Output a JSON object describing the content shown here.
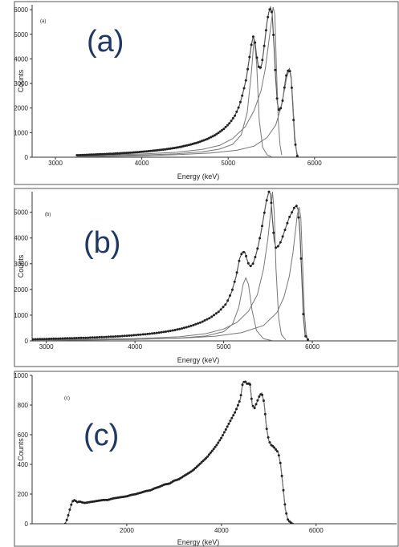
{
  "colors": {
    "big_label": "#1f3864",
    "fit_line": "#777777",
    "data_points": "#222222",
    "frame": "#555555"
  },
  "chart_data": [
    {
      "type": "line",
      "panel_tag": "(a)",
      "big_label": "(a)",
      "xlabel": "Energy (keV)",
      "ylabel": "Counts",
      "xlim": [
        2730,
        6950
      ],
      "ylim": [
        0,
        6200
      ],
      "x_ticks": [
        3000,
        4000,
        5000,
        6000
      ],
      "y_ticks": [
        0,
        1000,
        2000,
        3000,
        4000,
        5000,
        6000
      ],
      "points_x_range": [
        3250,
        5800
      ],
      "series": [
        {
          "role": "data",
          "x": [
            3250,
            3350,
            3450,
            3550,
            3650,
            3750,
            3850,
            3950,
            4050,
            4150,
            4250,
            4350,
            4450,
            4550,
            4650,
            4750,
            4850,
            4950,
            5020,
            5080,
            5130,
            5170,
            5210,
            5240,
            5270,
            5290,
            5310,
            5330,
            5350,
            5370,
            5390,
            5410,
            5430,
            5450,
            5470,
            5490,
            5510,
            5530,
            5550,
            5570,
            5590,
            5610,
            5630,
            5650,
            5670,
            5690,
            5710,
            5730,
            5750,
            5770,
            5800
          ],
          "y": [
            80,
            95,
            110,
            125,
            140,
            160,
            180,
            205,
            235,
            270,
            310,
            360,
            420,
            500,
            600,
            730,
            900,
            1150,
            1400,
            1700,
            2100,
            2600,
            3200,
            3900,
            4600,
            4900,
            4700,
            4100,
            3700,
            3600,
            3800,
            4300,
            4900,
            5500,
            5900,
            6100,
            5800,
            4600,
            3200,
            2200,
            1900,
            2000,
            2300,
            2800,
            3300,
            3500,
            3600,
            3200,
            2000,
            700,
            50
          ]
        },
        {
          "role": "fit",
          "x": [
            3250,
            3600,
            4000,
            4400,
            4700,
            4900,
            5050,
            5150,
            5220,
            5270,
            5300,
            5330,
            5360,
            5400,
            5450,
            5500
          ],
          "y": [
            40,
            60,
            90,
            140,
            220,
            330,
            520,
            900,
            1800,
            3500,
            4850,
            3800,
            1500,
            400,
            100,
            20
          ]
        },
        {
          "role": "fit",
          "x": [
            3250,
            3600,
            4000,
            4400,
            4700,
            4900,
            5050,
            5200,
            5300,
            5380,
            5430,
            5470,
            5500,
            5520,
            5540,
            5560,
            5580,
            5600,
            5620
          ],
          "y": [
            60,
            90,
            130,
            200,
            320,
            480,
            750,
            1250,
            1900,
            2700,
            3600,
            4700,
            5500,
            6100,
            5800,
            3500,
            1500,
            500,
            100
          ]
        },
        {
          "role": "fit",
          "x": [
            3250,
            3600,
            4000,
            4400,
            4800,
            5100,
            5300,
            5450,
            5550,
            5610,
            5650,
            5680,
            5710,
            5730,
            5750,
            5770,
            5790,
            5810
          ],
          "y": [
            20,
            35,
            60,
            100,
            170,
            280,
            450,
            800,
            1300,
            2000,
            2700,
            3300,
            3550,
            3300,
            2200,
            900,
            250,
            20
          ]
        }
      ]
    },
    {
      "type": "line",
      "panel_tag": "(b)",
      "big_label": "(b)",
      "xlabel": "Energy (keV)",
      "ylabel": "Counts",
      "xlim": [
        2840,
        6950
      ],
      "ylim": [
        0,
        5800
      ],
      "x_ticks": [
        3000,
        4000,
        5000,
        6000
      ],
      "y_ticks": [
        0,
        1000,
        2000,
        3000,
        4000,
        5000
      ],
      "points_x_range": [
        2850,
        5950
      ],
      "series": [
        {
          "role": "data",
          "x": [
            2850,
            2950,
            3050,
            3150,
            3250,
            3350,
            3450,
            3550,
            3650,
            3750,
            3850,
            3950,
            4050,
            4150,
            4250,
            4350,
            4450,
            4550,
            4650,
            4750,
            4850,
            4950,
            5030,
            5090,
            5140,
            5180,
            5210,
            5240,
            5260,
            5280,
            5300,
            5330,
            5360,
            5390,
            5420,
            5450,
            5480,
            5510,
            5530,
            5550,
            5570,
            5590,
            5620,
            5650,
            5680,
            5710,
            5740,
            5770,
            5800,
            5820,
            5840,
            5860,
            5880,
            5900,
            5920,
            5950
          ],
          "y": [
            60,
            70,
            80,
            90,
            100,
            110,
            120,
            135,
            150,
            165,
            185,
            210,
            240,
            270,
            310,
            360,
            420,
            500,
            600,
            730,
            900,
            1150,
            1450,
            1900,
            2500,
            3200,
            3450,
            3450,
            3200,
            3000,
            2900,
            3000,
            3300,
            3700,
            4200,
            4800,
            5400,
            5800,
            5700,
            4700,
            3900,
            3600,
            3700,
            3900,
            4200,
            4500,
            4800,
            5000,
            5200,
            5250,
            5100,
            4200,
            2600,
            900,
            200,
            50
          ]
        },
        {
          "role": "fit",
          "x": [
            2850,
            3400,
            4000,
            4500,
            4800,
            5000,
            5100,
            5170,
            5220,
            5250,
            5280,
            5320,
            5370,
            5450,
            5550
          ],
          "y": [
            20,
            35,
            60,
            110,
            190,
            360,
            650,
            1300,
            2200,
            2450,
            2200,
            1200,
            400,
            80,
            10
          ]
        },
        {
          "role": "fit",
          "x": [
            2850,
            3400,
            4000,
            4500,
            4800,
            5000,
            5150,
            5280,
            5380,
            5450,
            5500,
            5530,
            5550,
            5570,
            5590,
            5620,
            5650,
            5700
          ],
          "y": [
            40,
            60,
            90,
            160,
            280,
            460,
            720,
            1150,
            1800,
            2800,
            4000,
            5000,
            5800,
            5000,
            2800,
            900,
            250,
            40
          ]
        },
        {
          "role": "fit",
          "x": [
            2850,
            3400,
            4000,
            4500,
            4900,
            5200,
            5450,
            5600,
            5680,
            5740,
            5780,
            5810,
            5830,
            5850,
            5870,
            5890,
            5910,
            5930,
            5950
          ],
          "y": [
            20,
            35,
            60,
            100,
            180,
            320,
            600,
            1100,
            1700,
            2500,
            3400,
            4300,
            4900,
            5200,
            4800,
            3000,
            1100,
            300,
            40
          ]
        }
      ]
    },
    {
      "type": "line",
      "panel_tag": "(c)",
      "big_label": "(c)",
      "xlabel": "Energy (keV)",
      "ylabel": "Counts",
      "xlim": [
        0,
        7700
      ],
      "ylim": [
        0,
        1000
      ],
      "x_ticks": [
        2000,
        4000,
        6000
      ],
      "y_ticks": [
        0,
        200,
        400,
        600,
        800,
        1000
      ],
      "points_x_range": [
        700,
        5500
      ],
      "series": [
        {
          "role": "data",
          "x": [
            700,
            750,
            800,
            850,
            900,
            950,
            1000,
            1100,
            1200,
            1300,
            1400,
            1500,
            1600,
            1700,
            1800,
            1900,
            2000,
            2100,
            2200,
            2300,
            2400,
            2500,
            2600,
            2700,
            2800,
            2900,
            3000,
            3100,
            3200,
            3300,
            3400,
            3500,
            3600,
            3700,
            3800,
            3900,
            4000,
            4100,
            4200,
            4300,
            4400,
            4450,
            4500,
            4550,
            4600,
            4650,
            4700,
            4750,
            4800,
            4850,
            4900,
            4950,
            5000,
            5050,
            5100,
            5150,
            5200,
            5250,
            5300,
            5350,
            5400,
            5450,
            5500
          ],
          "y": [
            0,
            40,
            100,
            150,
            160,
            145,
            150,
            140,
            145,
            150,
            155,
            160,
            160,
            170,
            175,
            180,
            185,
            195,
            200,
            210,
            220,
            225,
            240,
            250,
            265,
            270,
            290,
            300,
            320,
            340,
            360,
            390,
            420,
            450,
            490,
            530,
            580,
            640,
            700,
            760,
            840,
            950,
            960,
            940,
            950,
            800,
            780,
            820,
            860,
            880,
            820,
            650,
            560,
            530,
            520,
            500,
            480,
            400,
            250,
            100,
            30,
            10,
            0
          ]
        },
        {
          "role": "fit",
          "x": [
            700,
            750,
            800,
            850,
            900,
            950,
            1000,
            1100,
            1200,
            1300,
            1400,
            1500,
            1600,
            1700,
            1800,
            1900,
            2000,
            2100,
            2200,
            2300,
            2400,
            2500,
            2600,
            2700,
            2800,
            2900,
            3000,
            3100,
            3200,
            3300,
            3400,
            3500,
            3600,
            3700,
            3800,
            3900,
            4000,
            4100,
            4200,
            4300,
            4400,
            4450,
            4500,
            4550,
            4600,
            4650,
            4700,
            4750,
            4800,
            4850,
            4900,
            4950,
            5000,
            5050,
            5100,
            5150,
            5200,
            5250,
            5300,
            5350,
            5400,
            5450,
            5500
          ],
          "y": [
            0,
            40,
            100,
            150,
            160,
            145,
            150,
            140,
            145,
            150,
            155,
            160,
            160,
            170,
            175,
            180,
            185,
            195,
            200,
            210,
            220,
            225,
            240,
            250,
            265,
            270,
            290,
            300,
            320,
            340,
            360,
            390,
            420,
            450,
            490,
            530,
            580,
            640,
            700,
            760,
            840,
            950,
            960,
            940,
            950,
            800,
            780,
            820,
            860,
            880,
            820,
            650,
            560,
            530,
            520,
            500,
            480,
            400,
            250,
            100,
            30,
            10,
            0
          ]
        }
      ]
    }
  ]
}
